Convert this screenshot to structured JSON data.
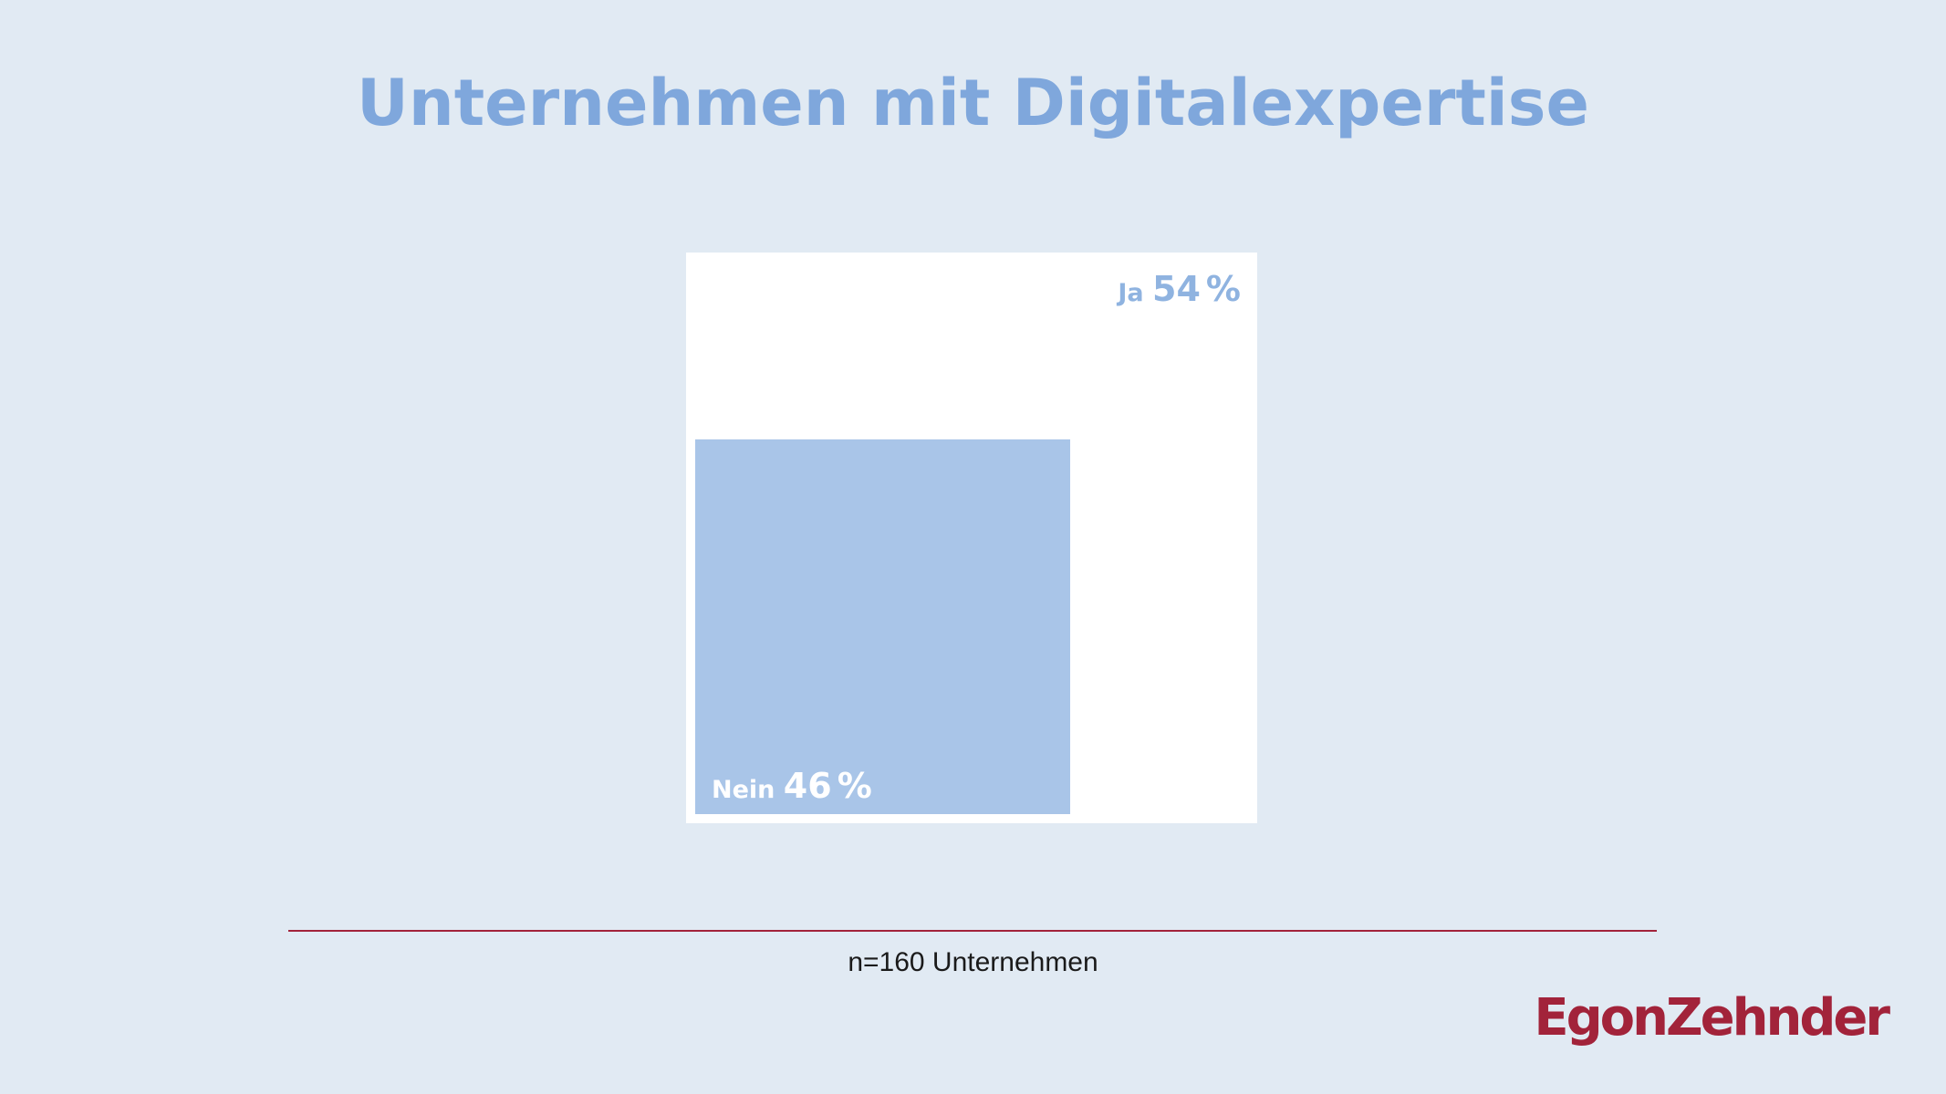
{
  "chart_data": {
    "type": "treemap",
    "title": "Unternehmen mit Digitalexpertise",
    "categories": [
      "Ja",
      "Nein"
    ],
    "values": [
      54,
      46
    ],
    "unit": "%",
    "segments": [
      {
        "label": "Ja",
        "value": 54,
        "value_text": "54",
        "percent_sign": "%",
        "color": "#ffffff",
        "label_color": "#8fb3e0"
      },
      {
        "label": "Nein",
        "value": 46,
        "value_text": "46",
        "percent_sign": "%",
        "color": "#a9c5e8",
        "label_color": "#ffffff"
      }
    ],
    "note": "n=160 Unternehmen"
  },
  "colors": {
    "background": "#e1eaf3",
    "title": "#7fa7dc",
    "brand": "#a2233a"
  },
  "logo": {
    "text": "EgonZehnder"
  }
}
